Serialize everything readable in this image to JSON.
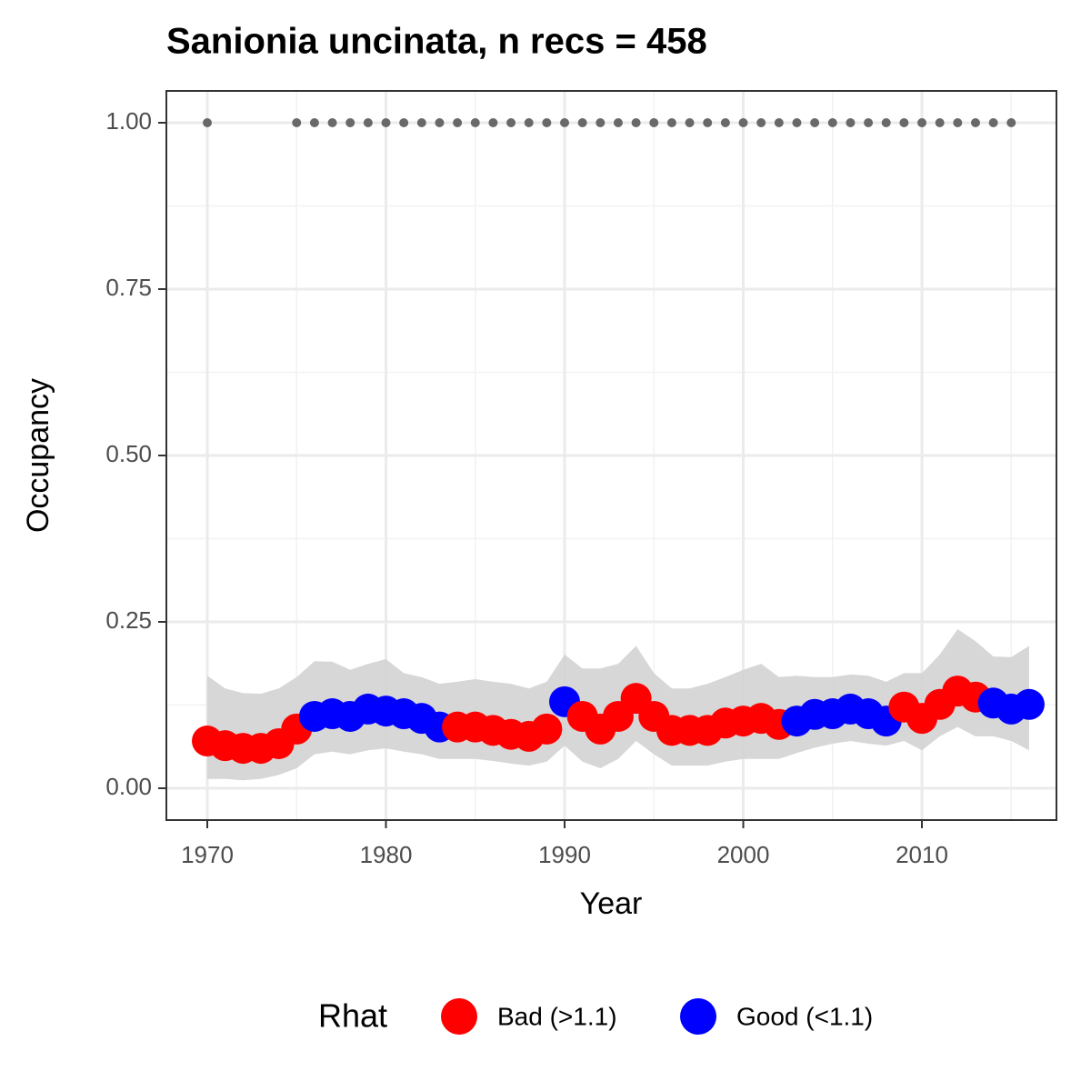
{
  "chart_data": {
    "type": "scatter",
    "title": "Sanionia uncinata, n recs = 458",
    "x_label": "Year",
    "y_label": "Occupancy",
    "legend_title": "Rhat",
    "x": [
      1970,
      1971,
      1972,
      1973,
      1974,
      1975,
      1976,
      1977,
      1978,
      1979,
      1980,
      1981,
      1982,
      1983,
      1984,
      1985,
      1986,
      1987,
      1988,
      1989,
      1990,
      1991,
      1992,
      1993,
      1994,
      1995,
      1996,
      1997,
      1998,
      1999,
      2000,
      2001,
      2002,
      2003,
      2004,
      2005,
      2006,
      2007,
      2008,
      2009,
      2010,
      2011,
      2012,
      2013,
      2014,
      2015,
      2016
    ],
    "series": [
      {
        "name": "Bad (>1.1)",
        "color": "#ff0000",
        "values": [
          0.071,
          0.064,
          0.06,
          0.06,
          0.067,
          0.089,
          null,
          null,
          null,
          null,
          null,
          null,
          null,
          null,
          0.092,
          0.092,
          0.087,
          0.081,
          0.078,
          0.089,
          null,
          0.108,
          0.089,
          0.108,
          0.135,
          0.108,
          0.087,
          0.087,
          0.087,
          0.098,
          0.101,
          0.105,
          0.096,
          null,
          null,
          null,
          null,
          null,
          null,
          0.122,
          0.105,
          0.126,
          0.146,
          0.137,
          null,
          null,
          null
        ]
      },
      {
        "name": "Good (<1.1)",
        "color": "#0000ff",
        "values": [
          null,
          null,
          null,
          null,
          null,
          null,
          0.108,
          0.112,
          0.108,
          0.119,
          0.116,
          0.112,
          0.105,
          0.092,
          null,
          null,
          null,
          null,
          null,
          null,
          0.13,
          null,
          null,
          null,
          null,
          null,
          null,
          null,
          null,
          null,
          null,
          null,
          null,
          0.101,
          0.111,
          0.112,
          0.119,
          0.112,
          0.101,
          null,
          null,
          null,
          null,
          null,
          0.128,
          0.119,
          0.126
        ]
      }
    ],
    "band": {
      "color": "#d3d3d3",
      "upper": [
        0.169,
        0.15,
        0.143,
        0.142,
        0.15,
        0.167,
        0.191,
        0.19,
        0.178,
        0.187,
        0.194,
        0.173,
        0.167,
        0.157,
        0.16,
        0.164,
        0.16,
        0.157,
        0.15,
        0.16,
        0.201,
        0.18,
        0.18,
        0.187,
        0.214,
        0.173,
        0.15,
        0.15,
        0.157,
        0.167,
        0.178,
        0.187,
        0.167,
        0.169,
        0.167,
        0.167,
        0.171,
        0.169,
        0.16,
        0.173,
        0.173,
        0.201,
        0.239,
        0.221,
        0.198,
        0.197,
        0.214
      ],
      "lower": [
        0.014,
        0.014,
        0.012,
        0.014,
        0.02,
        0.03,
        0.051,
        0.055,
        0.051,
        0.057,
        0.06,
        0.055,
        0.051,
        0.044,
        0.044,
        0.044,
        0.041,
        0.037,
        0.034,
        0.04,
        0.064,
        0.04,
        0.03,
        0.044,
        0.071,
        0.051,
        0.034,
        0.034,
        0.034,
        0.04,
        0.044,
        0.044,
        0.044,
        0.053,
        0.061,
        0.067,
        0.071,
        0.067,
        0.064,
        0.071,
        0.057,
        0.078,
        0.092,
        0.078,
        0.078,
        0.071,
        0.057
      ]
    },
    "detections": {
      "color": "#696969",
      "x": [
        1970,
        1975,
        1976,
        1977,
        1978,
        1979,
        1980,
        1981,
        1982,
        1983,
        1984,
        1985,
        1986,
        1987,
        1988,
        1989,
        1990,
        1991,
        1992,
        1993,
        1994,
        1995,
        1996,
        1997,
        1998,
        1999,
        2000,
        2001,
        2002,
        2003,
        2004,
        2005,
        2006,
        2007,
        2008,
        2009,
        2010,
        2011,
        2012,
        2013,
        2014,
        2015
      ],
      "values": [
        1,
        1,
        1,
        1,
        1,
        1,
        1,
        1,
        1,
        1,
        1,
        1,
        1,
        1,
        1,
        1,
        1,
        1,
        1,
        1,
        1,
        1,
        1,
        1,
        1,
        1,
        1,
        1,
        1,
        1,
        1,
        1,
        1,
        1,
        1,
        1,
        1,
        1,
        1,
        1,
        1,
        1
      ]
    },
    "xlim": [
      1967.71,
      2017.53
    ],
    "ylim": [
      -0.0478,
      1.0478
    ],
    "xticks": [
      1970,
      1980,
      1990,
      2000,
      2010
    ],
    "yticks": [
      {
        "value": 0,
        "label": "0.00"
      },
      0.25,
      {
        "value": 0.5,
        "label": "0.50"
      },
      0.75,
      {
        "value": 1,
        "label": "1.00"
      }
    ],
    "grid": true,
    "legend_position": "bottom"
  }
}
